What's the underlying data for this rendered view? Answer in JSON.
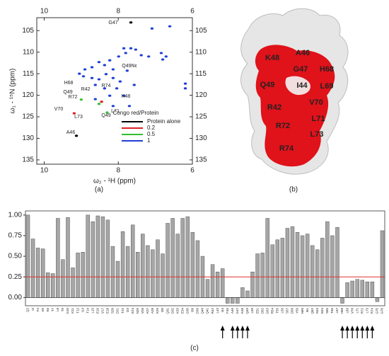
{
  "panel_labels": [
    "(a)",
    "(b)",
    "(c)"
  ],
  "structure_labels": [
    "K48",
    "A46",
    "G47",
    "H68",
    "Q49",
    "I44",
    "L69",
    "R42",
    "V70",
    "L71",
    "R72",
    "L73",
    "R74"
  ],
  "chart_data": [
    {
      "type": "scatter",
      "x_label": "ω₂ - ¹H (ppm)",
      "y_label": "ω₁ - ¹⁵N (ppm)",
      "xlim": [
        10.2,
        6
      ],
      "xticks": [
        10,
        8,
        6
      ],
      "ylim": [
        102,
        136
      ],
      "yticks": [
        105,
        110,
        115,
        120,
        125,
        130,
        135
      ],
      "legend_title": "Congo red/Protein",
      "annotations": [
        "G47",
        "Q49Nε",
        "H68",
        "R42",
        "R74",
        "Q49",
        "R72",
        "K48",
        "V70",
        "L73",
        "Q49",
        "L71",
        "A46"
      ],
      "series": [
        {
          "name": "Protein alone",
          "color": "#000000",
          "x": [
            9.13,
            7.66
          ],
          "values": [
            129.4,
            103.1
          ]
        },
        {
          "name": "0.2",
          "color": "#e02020",
          "x": [
            9.19,
            8.45
          ],
          "values": [
            124.2,
            121.5
          ]
        },
        {
          "name": "0.5",
          "color": "#30c030",
          "x": [
            9.0,
            8.52,
            8.3
          ],
          "values": [
            121.0,
            122.0,
            124.0
          ]
        },
        {
          "name": "1",
          "color": "#1f3fd6",
          "x": [
            7.85,
            7.66,
            7.8,
            7.53,
            7.38,
            7.18,
            6.84,
            6.71,
            6.8,
            7.99,
            8.23,
            8.37,
            8.52,
            8.71,
            8.9,
            9.05,
            8.94,
            8.71,
            8.52,
            8.33,
            8.14,
            7.95,
            7.76,
            8.14,
            8.62,
            8.37,
            8.04,
            7.57,
            8.23,
            7.85,
            8.62,
            8.14,
            7.7,
            6.61,
            7.09,
            6.19,
            6.19
          ],
          "values": [
            109.1,
            109.1,
            110.2,
            109.4,
            110.7,
            111.0,
            110.2,
            111.0,
            111.7,
            111.0,
            111.9,
            113.0,
            112.3,
            113.5,
            114.0,
            115.0,
            115.6,
            116.0,
            116.3,
            115.1,
            116.0,
            116.8,
            114.3,
            114.0,
            117.6,
            118.4,
            118.4,
            117.6,
            120.1,
            120.1,
            120.9,
            122.5,
            122.5,
            104.0,
            104.5,
            117.3,
            118.4
          ]
        }
      ]
    },
    {
      "type": "bar",
      "color": "#a6a6a6",
      "threshold": 0.25,
      "threshold_color": "#e03030",
      "ylim": [
        -0.1,
        1.05
      ],
      "yticks": [
        {
          "value": 0,
          "label": "0.00"
        },
        {
          "value": 0.25,
          "label": "0.25"
        },
        {
          "value": 0.5,
          "label": "0.50"
        },
        {
          "value": 0.75,
          "label": "0.75"
        },
        {
          "value": 1,
          "label": "1.00"
        }
      ],
      "categories": [
        "Q2",
        "I3",
        "F4",
        "V5",
        "K6",
        "T7",
        "L8",
        "T9",
        "G10",
        "K11",
        "T12",
        "I13",
        "T14",
        "L15",
        "E16",
        "V17",
        "E18",
        "S20",
        "D21",
        "T22",
        "I23",
        "E24",
        "N25",
        "V26",
        "K27",
        "A28",
        "K29",
        "I30",
        "Q31",
        "D32",
        "K33",
        "E34",
        "G35",
        "I36",
        "D39",
        "Q40",
        "Q41",
        "R42",
        "L43",
        "I44",
        "F45",
        "A46",
        "G47",
        "K48",
        "Q49",
        "L50",
        "E51",
        "D52",
        "G53",
        "R54",
        "T55",
        "L56",
        "S57",
        "D58",
        "Y59",
        "N60",
        "I61",
        "Q62",
        "K63",
        "E64",
        "S65",
        "T66",
        "L67",
        "H68",
        "L69",
        "V70",
        "L71",
        "R72",
        "L73",
        "R74",
        "G75",
        "G76"
      ],
      "values": [
        1.0,
        0.71,
        0.6,
        0.59,
        0.3,
        0.29,
        0.96,
        0.46,
        0.97,
        0.36,
        0.54,
        0.55,
        1.0,
        0.92,
        0.99,
        0.98,
        0.94,
        0.62,
        0.44,
        0.8,
        0.62,
        0.88,
        0.55,
        0.77,
        0.63,
        0.58,
        0.7,
        0.53,
        0.9,
        0.96,
        0.77,
        0.96,
        0.98,
        0.79,
        0.69,
        0.5,
        0.22,
        0.4,
        0.31,
        0.35,
        -0.07,
        -0.07,
        -0.07,
        0.12,
        0.08,
        0.31,
        0.53,
        0.54,
        0.96,
        0.64,
        0.7,
        0.72,
        0.84,
        0.86,
        0.79,
        0.75,
        0.77,
        0.63,
        0.58,
        0.72,
        0.92,
        0.75,
        0.85,
        -0.07,
        0.18,
        0.2,
        0.22,
        0.21,
        0.19,
        0.19,
        -0.05,
        0.81
      ]
    }
  ]
}
